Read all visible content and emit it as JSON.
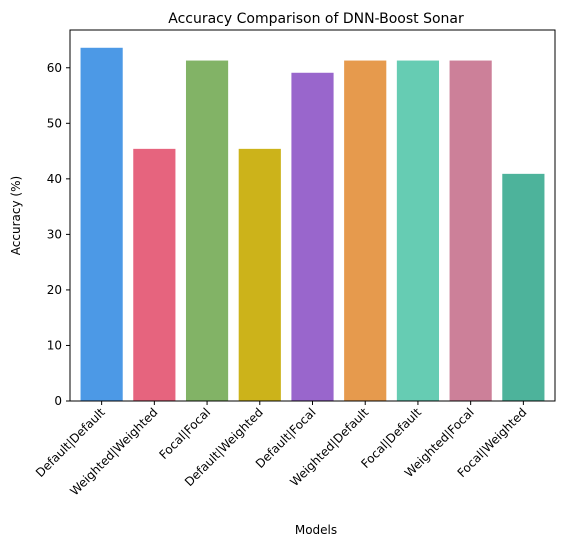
{
  "chart_data": {
    "type": "bar",
    "title": "Accuracy Comparison of DNN-Boost Sonar",
    "xlabel": "Models",
    "ylabel": "Accuracy (%)",
    "categories": [
      "Default|Default",
      "Weighted|Weighted",
      "Focal|Focal",
      "Default|Weighted",
      "Default|Focal",
      "Weighted|Default",
      "Focal|Default",
      "Weighted|Focal",
      "Focal|Weighted"
    ],
    "values": [
      63.6,
      45.4,
      61.3,
      45.4,
      59.1,
      61.3,
      61.3,
      61.3,
      40.9
    ],
    "colors": [
      "#4c99e6",
      "#e6647e",
      "#82b366",
      "#ccb31a",
      "#9966cc",
      "#e69a4d",
      "#66ccb3",
      "#cc8099",
      "#4db39b"
    ],
    "ylim": [
      0,
      66.8
    ],
    "yticks": [
      0,
      10,
      20,
      30,
      40,
      50,
      60
    ],
    "grid": false,
    "legend": "none"
  }
}
